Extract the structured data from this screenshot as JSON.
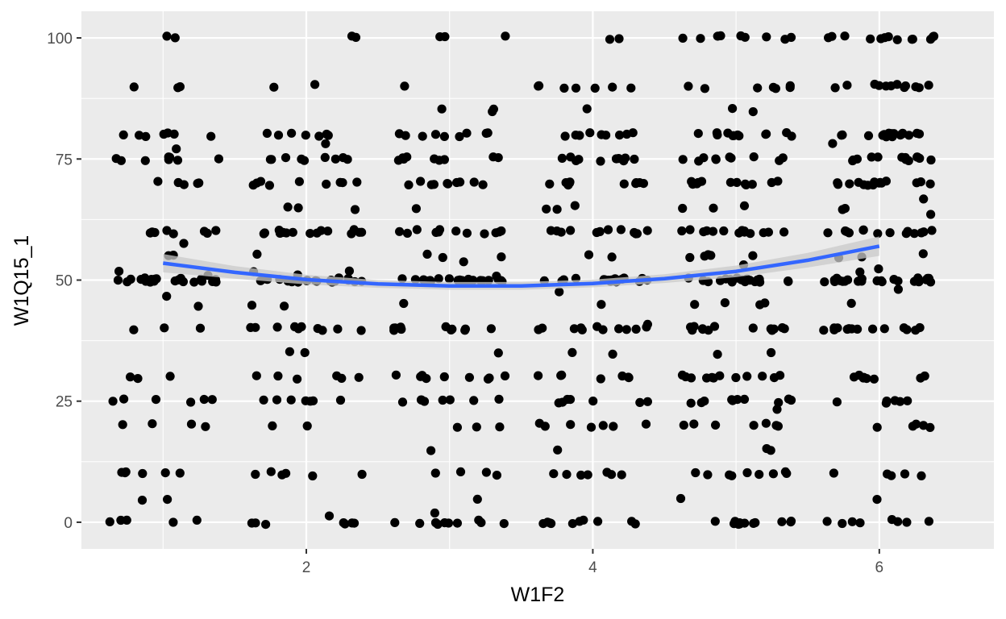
{
  "chart_data": {
    "type": "scatter",
    "title": "",
    "xlabel": "W1F2",
    "ylabel": "W1Q15_1",
    "xlim": [
      0.43,
      6.8
    ],
    "ylim": [
      -5.5,
      105.5
    ],
    "x_ticks": [
      2,
      4,
      6
    ],
    "x_tick_labels": [
      "2",
      "4",
      "6"
    ],
    "y_ticks": [
      0,
      25,
      50,
      75,
      100
    ],
    "y_tick_labels": [
      "0",
      "25",
      "50",
      "75",
      "100"
    ],
    "grid": true,
    "legend": "none",
    "point_color": "#000000",
    "points_note": "jittered scatter; x is a discrete score 1–6 with horizontal jitter",
    "groups": [
      {
        "x": 1,
        "values": [
          100,
          100,
          90,
          90,
          90,
          80,
          80,
          80,
          80,
          80,
          80,
          80,
          77,
          75,
          75,
          75,
          75,
          75,
          75,
          75,
          75,
          70,
          70,
          70,
          70,
          70,
          60,
          60,
          60,
          60,
          60,
          60,
          60,
          60,
          58,
          55,
          55,
          52,
          51,
          50,
          50,
          50,
          50,
          50,
          50,
          50,
          50,
          50,
          50,
          50,
          50,
          50,
          50,
          50,
          50,
          50,
          50,
          50,
          50,
          50,
          47,
          45,
          40,
          40,
          40,
          30,
          30,
          30,
          25,
          25,
          25,
          25,
          25,
          25,
          20,
          20,
          20,
          20,
          10,
          10,
          10,
          10,
          10,
          10,
          5,
          5,
          0,
          0,
          0,
          0,
          0
        ]
      },
      {
        "x": 2,
        "values": [
          100,
          100,
          90,
          90,
          80,
          80,
          80,
          80,
          80,
          80,
          80,
          78,
          75,
          75,
          75,
          75,
          75,
          75,
          75,
          75,
          75,
          70,
          70,
          70,
          70,
          70,
          70,
          70,
          70,
          70,
          65,
          65,
          65,
          60,
          60,
          60,
          60,
          60,
          60,
          60,
          60,
          60,
          60,
          60,
          60,
          60,
          60,
          60,
          55,
          52,
          52,
          51,
          50,
          50,
          50,
          50,
          50,
          50,
          50,
          50,
          50,
          50,
          50,
          50,
          50,
          50,
          50,
          50,
          50,
          50,
          50,
          50,
          45,
          45,
          40,
          40,
          40,
          40,
          40,
          40,
          40,
          40,
          40,
          40,
          35,
          35,
          30,
          30,
          30,
          30,
          30,
          30,
          25,
          25,
          25,
          25,
          25,
          25,
          25,
          20,
          20,
          10,
          10,
          10,
          10,
          10,
          10,
          1,
          0,
          0,
          0,
          0,
          0,
          0,
          0
        ]
      },
      {
        "x": 3,
        "values": [
          100,
          100,
          100,
          90,
          85,
          85,
          85,
          80,
          80,
          80,
          80,
          80,
          80,
          80,
          80,
          80,
          75,
          75,
          75,
          75,
          75,
          75,
          75,
          75,
          75,
          70,
          70,
          70,
          70,
          70,
          70,
          70,
          70,
          70,
          70,
          65,
          60,
          60,
          60,
          60,
          60,
          60,
          60,
          60,
          60,
          60,
          60,
          60,
          55,
          55,
          55,
          54,
          51,
          50,
          50,
          50,
          50,
          50,
          50,
          50,
          50,
          50,
          50,
          50,
          50,
          50,
          50,
          50,
          50,
          50,
          50,
          50,
          50,
          45,
          40,
          40,
          40,
          40,
          40,
          40,
          40,
          40,
          40,
          40,
          40,
          35,
          30,
          30,
          30,
          30,
          30,
          30,
          30,
          30,
          30,
          25,
          25,
          25,
          25,
          25,
          25,
          25,
          25,
          20,
          20,
          20,
          15,
          10,
          10,
          10,
          10,
          5,
          2,
          0,
          0,
          0,
          0,
          0,
          0,
          0,
          0,
          0,
          0
        ]
      },
      {
        "x": 4,
        "values": [
          100,
          100,
          90,
          90,
          90,
          90,
          90,
          90,
          90,
          85,
          80,
          80,
          80,
          80,
          80,
          80,
          80,
          80,
          80,
          75,
          75,
          75,
          75,
          75,
          75,
          75,
          75,
          75,
          75,
          70,
          70,
          70,
          70,
          70,
          70,
          70,
          70,
          70,
          70,
          65,
          65,
          65,
          60,
          60,
          60,
          60,
          60,
          60,
          60,
          60,
          60,
          60,
          60,
          60,
          55,
          55,
          50,
          50,
          50,
          50,
          50,
          50,
          50,
          50,
          50,
          50,
          50,
          50,
          50,
          50,
          50,
          50,
          50,
          50,
          50,
          48,
          45,
          41,
          40,
          40,
          40,
          40,
          40,
          40,
          40,
          40,
          40,
          40,
          40,
          35,
          35,
          30,
          30,
          30,
          30,
          30,
          30,
          30,
          25,
          25,
          25,
          25,
          25,
          25,
          25,
          20,
          20,
          20,
          20,
          20,
          20,
          20,
          15,
          10,
          10,
          10,
          10,
          10,
          10,
          10,
          0,
          0,
          0,
          0,
          0,
          0,
          0,
          0,
          0,
          0
        ]
      },
      {
        "x": 5,
        "values": [
          100,
          100,
          100,
          100,
          100,
          100,
          100,
          100,
          100,
          90,
          90,
          90,
          90,
          90,
          90,
          90,
          85,
          85,
          80,
          80,
          80,
          80,
          80,
          80,
          80,
          80,
          80,
          80,
          80,
          80,
          75,
          75,
          75,
          75,
          75,
          75,
          75,
          75,
          75,
          75,
          70,
          70,
          70,
          70,
          70,
          70,
          70,
          70,
          70,
          70,
          70,
          70,
          65,
          65,
          65,
          60,
          60,
          60,
          60,
          60,
          60,
          60,
          60,
          60,
          60,
          60,
          60,
          60,
          60,
          55,
          55,
          55,
          55,
          55,
          53,
          50,
          50,
          50,
          50,
          50,
          50,
          50,
          50,
          50,
          50,
          50,
          50,
          50,
          50,
          50,
          50,
          50,
          50,
          50,
          50,
          45,
          45,
          45,
          45,
          40,
          40,
          40,
          40,
          40,
          40,
          40,
          40,
          40,
          40,
          40,
          40,
          40,
          35,
          35,
          30,
          30,
          30,
          30,
          30,
          30,
          30,
          30,
          30,
          30,
          30,
          30,
          25,
          25,
          25,
          25,
          25,
          25,
          25,
          25,
          25,
          25,
          23,
          20,
          20,
          20,
          20,
          20,
          20,
          20,
          15,
          15,
          10,
          10,
          10,
          10,
          10,
          10,
          10,
          10,
          10,
          5,
          0,
          0,
          0,
          0,
          0,
          0,
          0,
          0,
          0,
          0,
          0,
          0
        ]
      },
      {
        "x": 6,
        "values": [
          100,
          100,
          100,
          100,
          100,
          100,
          100,
          100,
          100,
          100,
          100,
          100,
          100,
          90,
          90,
          90,
          90,
          90,
          90,
          90,
          90,
          90,
          90,
          90,
          90,
          80,
          80,
          80,
          80,
          80,
          80,
          80,
          80,
          80,
          80,
          80,
          80,
          80,
          80,
          80,
          80,
          78,
          75,
          75,
          75,
          75,
          75,
          75,
          75,
          75,
          75,
          75,
          75,
          75,
          75,
          70,
          70,
          70,
          70,
          70,
          70,
          70,
          70,
          70,
          70,
          70,
          70,
          70,
          70,
          70,
          70,
          67,
          65,
          65,
          64,
          60,
          60,
          60,
          60,
          60,
          60,
          60,
          60,
          60,
          60,
          60,
          60,
          60,
          60,
          55,
          55,
          55,
          52,
          52,
          50,
          50,
          50,
          50,
          50,
          50,
          50,
          50,
          50,
          50,
          50,
          50,
          50,
          50,
          50,
          50,
          50,
          50,
          50,
          50,
          50,
          50,
          50,
          50,
          48,
          45,
          40,
          40,
          40,
          40,
          40,
          40,
          40,
          40,
          40,
          40,
          40,
          40,
          40,
          40,
          30,
          30,
          30,
          30,
          30,
          30,
          30,
          30,
          25,
          25,
          25,
          25,
          25,
          25,
          20,
          20,
          20,
          20,
          20,
          10,
          10,
          10,
          10,
          10,
          5,
          1,
          0,
          0,
          0,
          0,
          0,
          0,
          0
        ]
      }
    ],
    "smooth_series": {
      "method": "quadratic fit with confidence band",
      "color": "#3366ff",
      "band_color": "#c9c9c9",
      "x": [
        1,
        1.5,
        2,
        2.5,
        3,
        3.5,
        4,
        4.5,
        5,
        5.5,
        6
      ],
      "y": [
        53.5,
        51.6,
        50.1,
        49.2,
        48.8,
        48.8,
        49.3,
        50.3,
        51.8,
        54.1,
        57.0
      ],
      "lower": [
        51.6,
        50.3,
        49.1,
        48.4,
        48.0,
        48.0,
        48.5,
        49.4,
        50.6,
        52.6,
        55.0
      ],
      "upper": [
        55.4,
        52.9,
        51.1,
        50.0,
        49.6,
        49.6,
        50.1,
        51.2,
        53.0,
        55.6,
        59.0
      ]
    }
  }
}
